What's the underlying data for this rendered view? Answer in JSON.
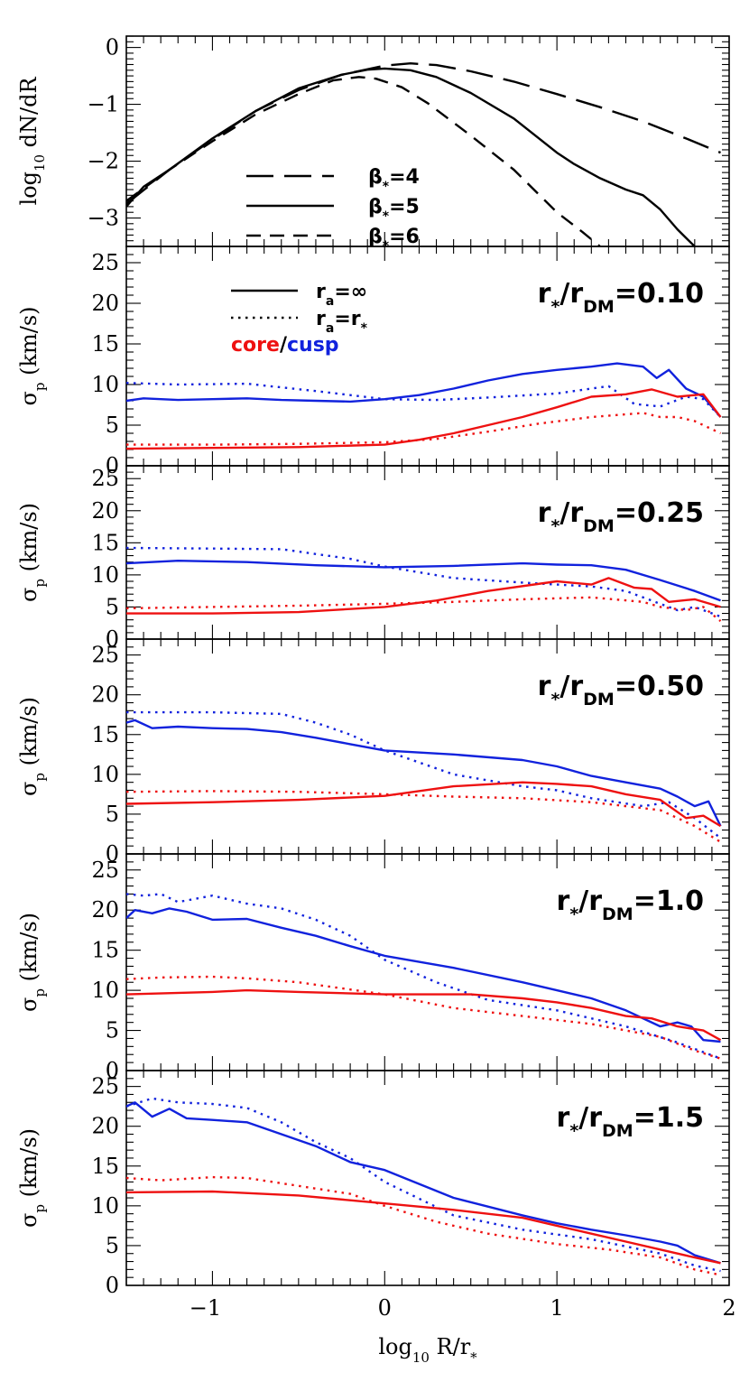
{
  "colors": {
    "axis": "#000000",
    "core": "#ee1111",
    "cusp": "#1122dd",
    "profile": "#000000"
  },
  "xlabel_parts": [
    "log",
    "10",
    " R/r",
    "*"
  ],
  "xticks": [
    -1,
    0,
    1,
    2
  ],
  "xtick_labels": [
    "−1",
    "0",
    "1",
    "2"
  ],
  "chart_data": [
    {
      "type": "line",
      "panel": "profile",
      "ylabel_parts": [
        "log",
        "10",
        " dN/dR"
      ],
      "xlim": [
        -1.5,
        2
      ],
      "ylim": [
        -3.5,
        0.2
      ],
      "yticks": [
        -3,
        -2,
        -1,
        0
      ],
      "ytick_labels": [
        "−3",
        "−2",
        "−1",
        "0"
      ],
      "legend": [
        {
          "parts": [
            "β",
            "*",
            "=4"
          ],
          "style": "longdash"
        },
        {
          "parts": [
            "β",
            "*",
            "=5"
          ],
          "style": "solid"
        },
        {
          "parts": [
            "β",
            "*",
            "=6"
          ],
          "style": "dash"
        }
      ],
      "series": [
        {
          "style": "longdash",
          "color": "profile",
          "x": [
            -1.5,
            -1.25,
            -1.0,
            -0.75,
            -0.5,
            -0.25,
            0.0,
            0.15,
            0.3,
            0.5,
            0.75,
            1.0,
            1.25,
            1.5,
            1.75,
            1.95
          ],
          "y": [
            -2.75,
            -2.15,
            -1.62,
            -1.12,
            -0.75,
            -0.48,
            -0.32,
            -0.28,
            -0.31,
            -0.42,
            -0.6,
            -0.82,
            -1.05,
            -1.3,
            -1.6,
            -1.85
          ]
        },
        {
          "style": "solid",
          "color": "profile",
          "x": [
            -1.5,
            -1.4,
            -1.25,
            -1.0,
            -0.75,
            -0.5,
            -0.25,
            -0.1,
            0.0,
            0.15,
            0.3,
            0.5,
            0.75,
            1.0,
            1.1,
            1.25,
            1.4,
            1.5,
            1.6,
            1.7,
            1.8
          ],
          "y": [
            -2.8,
            -2.45,
            -2.15,
            -1.6,
            -1.12,
            -0.72,
            -0.48,
            -0.39,
            -0.37,
            -0.4,
            -0.52,
            -0.8,
            -1.25,
            -1.85,
            -2.05,
            -2.3,
            -2.5,
            -2.6,
            -2.85,
            -3.2,
            -3.5
          ]
        },
        {
          "style": "dash",
          "color": "profile",
          "x": [
            -1.5,
            -1.25,
            -1.0,
            -0.75,
            -0.5,
            -0.3,
            -0.15,
            -0.05,
            0.1,
            0.25,
            0.5,
            0.75,
            1.0,
            1.15,
            1.25
          ],
          "y": [
            -2.7,
            -2.15,
            -1.65,
            -1.18,
            -0.82,
            -0.58,
            -0.52,
            -0.55,
            -0.7,
            -0.98,
            -1.55,
            -2.15,
            -2.9,
            -3.25,
            -3.5
          ]
        }
      ]
    },
    {
      "type": "line",
      "panel": "dispersion",
      "label_parts": [
        "r",
        "*",
        "/r",
        "DM",
        "=0.10"
      ],
      "ylabel_parts": [
        "σ",
        "p",
        " (km/s)"
      ],
      "xlim": [
        -1.5,
        2
      ],
      "ylim": [
        0,
        27
      ],
      "yticks": [
        0,
        5,
        10,
        15,
        20,
        25
      ],
      "ytick_labels": [
        "0",
        "5",
        "10",
        "15",
        "20",
        "25"
      ],
      "legend": [
        {
          "parts": [
            "r",
            "a",
            "=∞"
          ],
          "style": "solid"
        },
        {
          "parts": [
            "r",
            "a",
            "=r",
            "*"
          ],
          "style": "dot"
        }
      ],
      "legend_colors": [
        "core",
        "/",
        "cusp"
      ],
      "series": [
        {
          "style": "solid",
          "color": "cusp",
          "x": [
            -1.5,
            -1.4,
            -1.2,
            -1.0,
            -0.8,
            -0.6,
            -0.4,
            -0.2,
            0.0,
            0.2,
            0.4,
            0.6,
            0.8,
            1.0,
            1.2,
            1.35,
            1.5,
            1.58,
            1.65,
            1.75,
            1.85,
            1.95
          ],
          "y": [
            8.0,
            8.3,
            8.1,
            8.2,
            8.3,
            8.1,
            8.0,
            7.9,
            8.2,
            8.7,
            9.5,
            10.5,
            11.3,
            11.8,
            12.2,
            12.6,
            12.2,
            10.8,
            11.8,
            9.5,
            8.5,
            6.0
          ]
        },
        {
          "style": "dot",
          "color": "cusp",
          "x": [
            -1.5,
            -1.2,
            -0.8,
            -0.4,
            0.0,
            0.3,
            0.6,
            1.0,
            1.3,
            1.45,
            1.6,
            1.75,
            1.85,
            1.95
          ],
          "y": [
            10.2,
            10.0,
            10.1,
            9.2,
            8.2,
            8.1,
            8.4,
            8.9,
            9.8,
            7.6,
            7.3,
            8.5,
            8.2,
            6.0
          ]
        },
        {
          "style": "solid",
          "color": "core",
          "x": [
            -1.5,
            -1.0,
            -0.5,
            0.0,
            0.2,
            0.4,
            0.6,
            0.8,
            1.0,
            1.2,
            1.4,
            1.55,
            1.7,
            1.85,
            1.95
          ],
          "y": [
            2.1,
            2.2,
            2.3,
            2.6,
            3.2,
            4.0,
            5.0,
            6.0,
            7.2,
            8.5,
            8.8,
            9.4,
            8.5,
            8.8,
            6.0
          ]
        },
        {
          "style": "dot",
          "color": "core",
          "x": [
            -1.5,
            -1.0,
            -0.5,
            0.0,
            0.3,
            0.6,
            0.9,
            1.2,
            1.5,
            1.6,
            1.7,
            1.8,
            1.95
          ],
          "y": [
            2.6,
            2.6,
            2.7,
            2.9,
            3.3,
            4.2,
            5.2,
            6.0,
            6.5,
            6.0,
            6.0,
            5.5,
            4.0
          ]
        }
      ]
    },
    {
      "type": "line",
      "panel": "dispersion",
      "label_parts": [
        "r",
        "*",
        "/r",
        "DM",
        "=0.25"
      ],
      "ylabel_parts": [
        "σ",
        "p",
        " (km/s)"
      ],
      "xlim": [
        -1.5,
        2
      ],
      "ylim": [
        0,
        27
      ],
      "yticks": [
        0,
        5,
        10,
        15,
        20,
        25
      ],
      "ytick_labels": [
        "0",
        "5",
        "10",
        "15",
        "20",
        "25"
      ],
      "series": [
        {
          "style": "solid",
          "color": "cusp",
          "x": [
            -1.5,
            -1.2,
            -0.8,
            -0.4,
            0.0,
            0.4,
            0.8,
            1.0,
            1.2,
            1.4,
            1.6,
            1.8,
            1.95
          ],
          "y": [
            11.8,
            12.2,
            12.0,
            11.5,
            11.2,
            11.4,
            11.8,
            11.6,
            11.5,
            10.8,
            9.2,
            7.5,
            6.0
          ]
        },
        {
          "style": "dot",
          "color": "cusp",
          "x": [
            -1.5,
            -1.0,
            -0.6,
            -0.2,
            0.0,
            0.4,
            0.8,
            1.0,
            1.2,
            1.4,
            1.5,
            1.6,
            1.7,
            1.8,
            1.95
          ],
          "y": [
            14.2,
            14.1,
            14.0,
            12.5,
            11.3,
            9.5,
            8.8,
            8.5,
            8.2,
            7.5,
            6.5,
            5.5,
            4.5,
            5.0,
            3.5
          ]
        },
        {
          "style": "solid",
          "color": "core",
          "x": [
            -1.5,
            -1.0,
            -0.5,
            0.0,
            0.3,
            0.6,
            1.0,
            1.2,
            1.3,
            1.45,
            1.55,
            1.65,
            1.8,
            1.95
          ],
          "y": [
            4.0,
            4.0,
            4.2,
            5.0,
            6.0,
            7.5,
            9.0,
            8.5,
            9.5,
            8.0,
            7.8,
            5.8,
            6.2,
            5.0
          ]
        },
        {
          "style": "dot",
          "color": "core",
          "x": [
            -1.5,
            -1.0,
            -0.5,
            0.0,
            0.4,
            0.8,
            1.2,
            1.5,
            1.6,
            1.75,
            1.85,
            1.95
          ],
          "y": [
            4.8,
            5.0,
            5.2,
            5.5,
            5.8,
            6.2,
            6.5,
            5.8,
            5.0,
            4.5,
            5.0,
            2.8
          ]
        }
      ]
    },
    {
      "type": "line",
      "panel": "dispersion",
      "label_parts": [
        "r",
        "*",
        "/r",
        "DM",
        "=0.50"
      ],
      "ylabel_parts": [
        "σ",
        "p",
        " (km/s)"
      ],
      "xlim": [
        -1.5,
        2
      ],
      "ylim": [
        0,
        27
      ],
      "yticks": [
        0,
        5,
        10,
        15,
        20,
        25
      ],
      "ytick_labels": [
        "0",
        "5",
        "10",
        "15",
        "20",
        "25"
      ],
      "series": [
        {
          "style": "solid",
          "color": "cusp",
          "x": [
            -1.5,
            -1.45,
            -1.35,
            -1.2,
            -1.0,
            -0.8,
            -0.6,
            -0.4,
            -0.2,
            0.0,
            0.4,
            0.8,
            1.0,
            1.2,
            1.4,
            1.6,
            1.7,
            1.8,
            1.88,
            1.95
          ],
          "y": [
            16.5,
            16.8,
            15.8,
            16.0,
            15.8,
            15.7,
            15.3,
            14.6,
            13.8,
            13.0,
            12.5,
            11.8,
            11.0,
            9.8,
            9.0,
            8.2,
            7.2,
            6.0,
            6.6,
            3.5
          ]
        },
        {
          "style": "dot",
          "color": "cusp",
          "x": [
            -1.5,
            -1.3,
            -1.0,
            -0.6,
            -0.4,
            -0.2,
            0.0,
            0.4,
            0.8,
            1.0,
            1.2,
            1.5,
            1.65,
            1.8,
            1.95
          ],
          "y": [
            17.8,
            17.8,
            17.8,
            17.6,
            16.5,
            15.0,
            13.0,
            10.0,
            8.5,
            8.0,
            7.0,
            6.0,
            6.5,
            4.5,
            2.0
          ]
        },
        {
          "style": "solid",
          "color": "core",
          "x": [
            -1.5,
            -1.0,
            -0.5,
            0.0,
            0.4,
            0.8,
            1.0,
            1.2,
            1.4,
            1.6,
            1.75,
            1.85,
            1.95
          ],
          "y": [
            6.3,
            6.5,
            6.8,
            7.3,
            8.5,
            9.0,
            8.8,
            8.5,
            7.5,
            6.8,
            4.5,
            4.8,
            3.5
          ]
        },
        {
          "style": "dot",
          "color": "core",
          "x": [
            -1.5,
            -1.0,
            -0.5,
            0.0,
            0.4,
            0.8,
            1.2,
            1.6,
            1.8,
            1.95
          ],
          "y": [
            7.8,
            7.9,
            7.8,
            7.5,
            7.2,
            7.0,
            6.5,
            5.5,
            3.5,
            1.5
          ]
        }
      ]
    },
    {
      "type": "line",
      "panel": "dispersion",
      "label_parts": [
        "r",
        "*",
        "/r",
        "DM",
        "=1.0"
      ],
      "ylabel_parts": [
        "σ",
        "p",
        " (km/s)"
      ],
      "xlim": [
        -1.5,
        2
      ],
      "ylim": [
        0,
        27
      ],
      "yticks": [
        0,
        5,
        10,
        15,
        20,
        25
      ],
      "ytick_labels": [
        "0",
        "5",
        "10",
        "15",
        "20",
        "25"
      ],
      "series": [
        {
          "style": "solid",
          "color": "cusp",
          "x": [
            -1.5,
            -1.45,
            -1.35,
            -1.25,
            -1.15,
            -1.0,
            -0.8,
            -0.6,
            -0.4,
            -0.2,
            0.0,
            0.4,
            0.8,
            1.0,
            1.2,
            1.4,
            1.6,
            1.7,
            1.78,
            1.85,
            1.95
          ],
          "y": [
            19.0,
            20.0,
            19.6,
            20.2,
            19.8,
            18.8,
            18.9,
            17.8,
            16.8,
            15.5,
            14.3,
            12.8,
            11.0,
            10.0,
            9.0,
            7.5,
            5.5,
            6.0,
            5.5,
            3.8,
            3.6
          ]
        },
        {
          "style": "dot",
          "color": "cusp",
          "x": [
            -1.5,
            -1.4,
            -1.3,
            -1.2,
            -1.0,
            -0.8,
            -0.6,
            -0.4,
            -0.2,
            0.0,
            0.3,
            0.6,
            1.0,
            1.4,
            1.7,
            1.95
          ],
          "y": [
            22.0,
            21.8,
            22.0,
            21.0,
            21.8,
            20.8,
            20.2,
            18.8,
            16.8,
            13.8,
            11.0,
            8.8,
            7.5,
            5.5,
            3.5,
            1.5
          ]
        },
        {
          "style": "solid",
          "color": "core",
          "x": [
            -1.5,
            -1.0,
            -0.8,
            -0.5,
            0.0,
            0.5,
            0.8,
            1.0,
            1.2,
            1.4,
            1.55,
            1.7,
            1.85,
            1.95
          ],
          "y": [
            9.5,
            9.8,
            10.0,
            9.8,
            9.5,
            9.5,
            9.0,
            8.5,
            7.8,
            6.8,
            6.5,
            5.5,
            5.0,
            3.8
          ]
        },
        {
          "style": "dot",
          "color": "core",
          "x": [
            -1.5,
            -1.3,
            -1.0,
            -0.8,
            -0.5,
            0.0,
            0.4,
            0.8,
            1.2,
            1.6,
            1.8,
            1.95
          ],
          "y": [
            11.4,
            11.6,
            11.7,
            11.5,
            11.0,
            9.5,
            7.8,
            6.8,
            5.8,
            4.2,
            2.5,
            1.5
          ]
        }
      ]
    },
    {
      "type": "line",
      "panel": "dispersion",
      "label_parts": [
        "r",
        "*",
        "/r",
        "DM",
        "=1.5"
      ],
      "ylabel_parts": [
        "σ",
        "p",
        " (km/s)"
      ],
      "xlim": [
        -1.5,
        2
      ],
      "ylim": [
        0,
        27
      ],
      "yticks": [
        0,
        5,
        10,
        15,
        20,
        25
      ],
      "ytick_labels": [
        "0",
        "5",
        "10",
        "15",
        "20",
        "25"
      ],
      "series": [
        {
          "style": "solid",
          "color": "cusp",
          "x": [
            -1.5,
            -1.45,
            -1.35,
            -1.25,
            -1.15,
            -1.0,
            -0.8,
            -0.6,
            -0.4,
            -0.2,
            0.0,
            0.4,
            0.8,
            1.0,
            1.2,
            1.4,
            1.6,
            1.7,
            1.8,
            1.95
          ],
          "y": [
            22.5,
            23.0,
            21.2,
            22.2,
            21.0,
            20.8,
            20.5,
            19.0,
            17.5,
            15.5,
            14.5,
            11.0,
            8.8,
            7.8,
            7.0,
            6.3,
            5.5,
            5.0,
            3.8,
            2.8
          ]
        },
        {
          "style": "dot",
          "color": "cusp",
          "x": [
            -1.5,
            -1.35,
            -1.2,
            -1.0,
            -0.8,
            -0.6,
            -0.4,
            -0.2,
            0.0,
            0.4,
            0.8,
            1.2,
            1.6,
            1.8,
            1.95
          ],
          "y": [
            22.5,
            23.5,
            23.0,
            22.8,
            22.3,
            20.5,
            18.0,
            16.0,
            13.0,
            8.8,
            7.0,
            5.8,
            4.0,
            2.5,
            1.8
          ]
        },
        {
          "style": "solid",
          "color": "core",
          "x": [
            -1.5,
            -1.0,
            -0.5,
            0.0,
            0.4,
            0.8,
            1.0,
            1.2,
            1.4,
            1.6,
            1.8,
            1.95
          ],
          "y": [
            11.7,
            11.8,
            11.3,
            10.3,
            9.5,
            8.5,
            7.5,
            6.5,
            5.5,
            4.5,
            3.5,
            2.8
          ]
        },
        {
          "style": "dot",
          "color": "core",
          "x": [
            -1.5,
            -1.3,
            -1.0,
            -0.8,
            -0.5,
            -0.2,
            0.0,
            0.3,
            0.6,
            1.0,
            1.3,
            1.6,
            1.8,
            1.95
          ],
          "y": [
            13.5,
            13.2,
            13.6,
            13.5,
            12.5,
            11.5,
            10.0,
            8.0,
            6.5,
            5.2,
            4.5,
            3.5,
            2.0,
            1.3
          ]
        }
      ]
    }
  ]
}
